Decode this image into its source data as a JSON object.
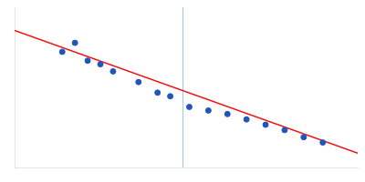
{
  "chart_data": {
    "type": "scatter",
    "series": [
      {
        "type": "scatter",
        "color": "#2255bb",
        "marker": "circle",
        "x": [
          0.055,
          0.075,
          0.095,
          0.115,
          0.135,
          0.175,
          0.205,
          0.225,
          0.255,
          0.285,
          0.315,
          0.345,
          0.375,
          0.405,
          0.435,
          0.465
        ],
        "values": [
          3.85,
          3.9,
          3.8,
          3.78,
          3.74,
          3.68,
          3.62,
          3.6,
          3.54,
          3.52,
          3.5,
          3.47,
          3.44,
          3.41,
          3.37,
          3.34
        ]
      },
      {
        "type": "line",
        "color": "#ee1111",
        "line_style": "solid",
        "x": [
          -0.02,
          0.52
        ],
        "values": [
          3.97,
          3.28
        ]
      },
      {
        "type": "vline",
        "color": "#99ccee",
        "line_style": "solid",
        "x": [
          0.245
        ]
      }
    ],
    "xlim": [
      -0.02,
      0.52
    ],
    "ylim": [
      3.2,
      4.1
    ],
    "grid": false,
    "tick_labels": false
  }
}
